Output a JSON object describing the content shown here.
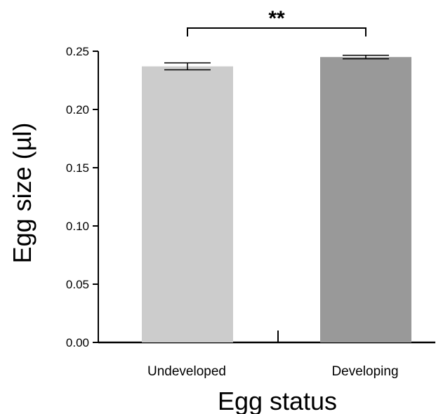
{
  "chart_data": {
    "type": "bar",
    "categories": [
      "Undeveloped",
      "Developing"
    ],
    "values": [
      0.237,
      0.245
    ],
    "error": [
      0.003,
      0.0015
    ],
    "colors": [
      "#cccccc",
      "#999999"
    ],
    "xlabel": "Egg status",
    "ylabel": "Egg size (µl)",
    "ylim": [
      0,
      0.25
    ],
    "yticks": [
      "0.00",
      "0.05",
      "0.10",
      "0.15",
      "0.20",
      "0.25"
    ],
    "significance": "**"
  }
}
